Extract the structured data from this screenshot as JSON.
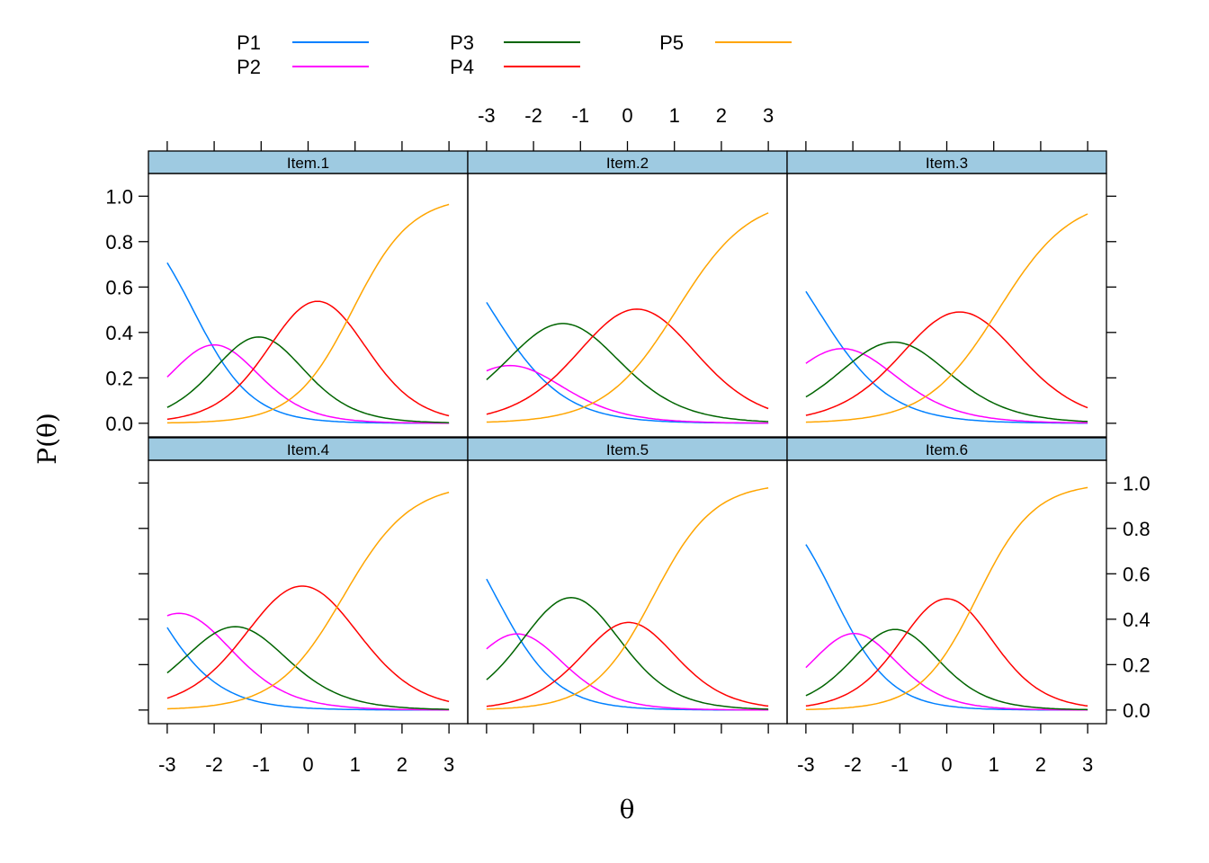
{
  "chart_data": {
    "type": "line",
    "layout": "trellis 3 columns x 2 rows",
    "xlabel": "θ",
    "ylabel": "P(θ)",
    "xlim": [
      -3.4,
      3.4
    ],
    "ylim": [
      -0.06,
      1.1
    ],
    "x_ticks": [
      "-3",
      "-2",
      "-1",
      "0",
      "1",
      "2",
      "3"
    ],
    "y_ticks": [
      "0.0",
      "0.2",
      "0.4",
      "0.6",
      "0.8",
      "1.0"
    ],
    "legend": {
      "placement": "top",
      "entries": [
        {
          "label": "P1",
          "color": "#0080ff"
        },
        {
          "label": "P2",
          "color": "#ff00ff"
        },
        {
          "label": "P3",
          "color": "#006400"
        },
        {
          "label": "P4",
          "color": "#ff0000"
        },
        {
          "label": "P5",
          "color": "#ffa500"
        }
      ]
    },
    "colors": {
      "strip": "#9ecae1",
      "P1": "#0080ff",
      "P2": "#ff00ff",
      "P3": "#006400",
      "P4": "#ff0000",
      "P5": "#ffa500"
    },
    "panels": [
      {
        "name": "Item.1",
        "a": 1.6,
        "b": [
          -2.45,
          -1.55,
          -0.55,
          0.95
        ]
      },
      {
        "name": "Item.2",
        "a": 1.3,
        "b": [
          -2.9,
          -2.1,
          -0.65,
          1.05
        ]
      },
      {
        "name": "Item.3",
        "a": 1.3,
        "b": [
          -2.75,
          -1.7,
          -0.55,
          1.1
        ]
      },
      {
        "name": "Item.4",
        "a": 1.4,
        "b": [
          -3.4,
          -2.1,
          -1.0,
          0.75
        ]
      },
      {
        "name": "Item.5",
        "a": 1.55,
        "b": [
          -2.8,
          -1.9,
          -0.5,
          0.55
        ]
      },
      {
        "name": "Item.6",
        "a": 1.65,
        "b": [
          -2.4,
          -1.55,
          -0.65,
          0.65
        ]
      }
    ]
  }
}
